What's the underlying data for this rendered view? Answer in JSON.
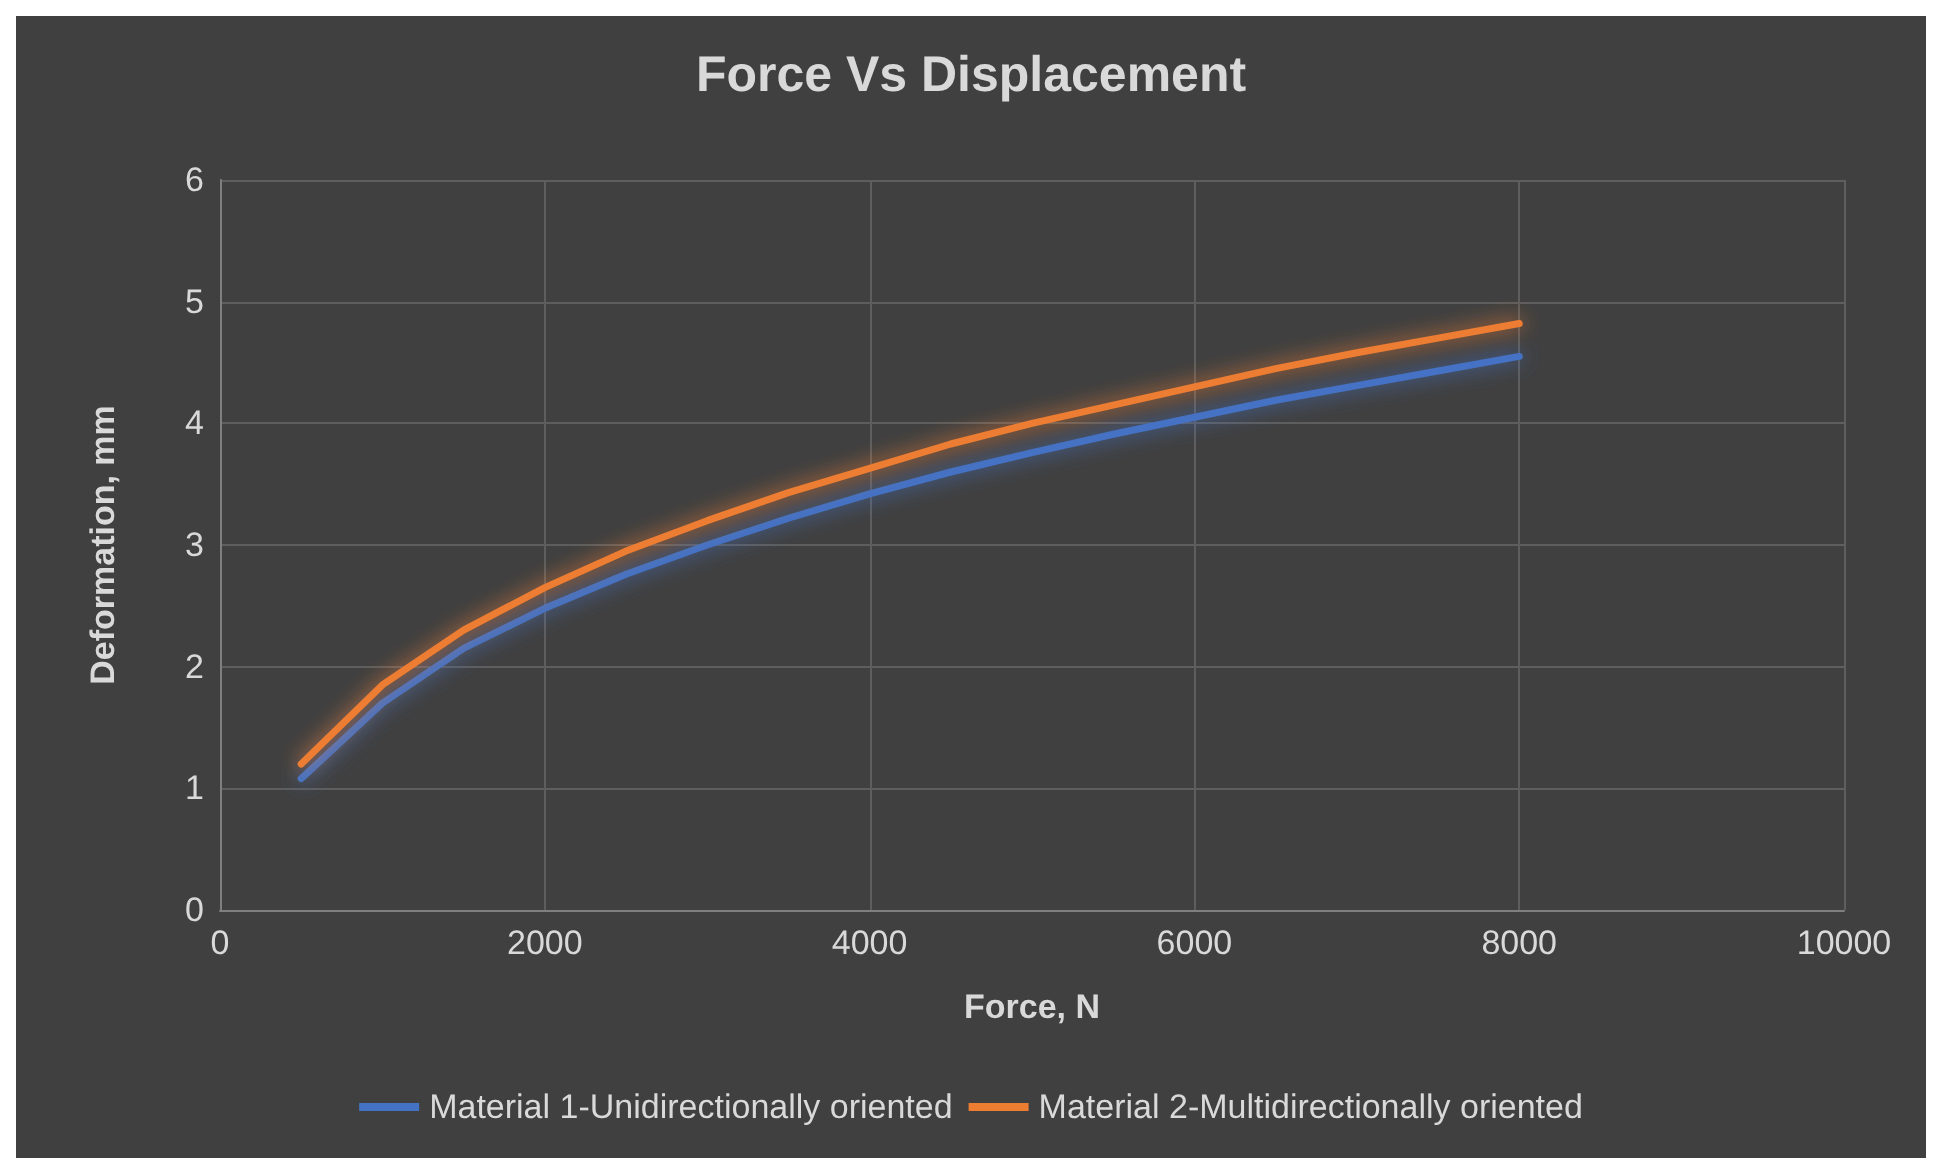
{
  "chart_data": {
    "type": "line",
    "title": "Force Vs Displacement",
    "xlabel": "Force, N",
    "ylabel": "Deformation, mm",
    "x": [
      500,
      1000,
      1500,
      2000,
      2500,
      3000,
      3500,
      4000,
      4500,
      5000,
      5500,
      6000,
      6500,
      7000,
      7500,
      8000
    ],
    "series": [
      {
        "name": "Material 1-Unidirectionally oriented",
        "color": "#4472c4",
        "values": [
          1.08,
          1.7,
          2.15,
          2.48,
          2.76,
          3.0,
          3.22,
          3.42,
          3.6,
          3.76,
          3.91,
          4.05,
          4.19,
          4.31,
          4.43,
          4.55
        ]
      },
      {
        "name": "Material 2-Multidirectionally oriented",
        "color": "#ed7d31",
        "values": [
          1.2,
          1.85,
          2.3,
          2.65,
          2.95,
          3.2,
          3.43,
          3.63,
          3.83,
          4.0,
          4.15,
          4.3,
          4.45,
          4.58,
          4.7,
          4.82
        ]
      }
    ],
    "xlim": [
      0,
      10000
    ],
    "xticks": [
      0,
      2000,
      4000,
      6000,
      8000,
      10000
    ],
    "ylim": [
      0,
      6
    ],
    "yticks": [
      0,
      1,
      2,
      3,
      4,
      5,
      6
    ],
    "grid": true,
    "legend": "bottom",
    "marker": "none",
    "line_style": "solid"
  }
}
